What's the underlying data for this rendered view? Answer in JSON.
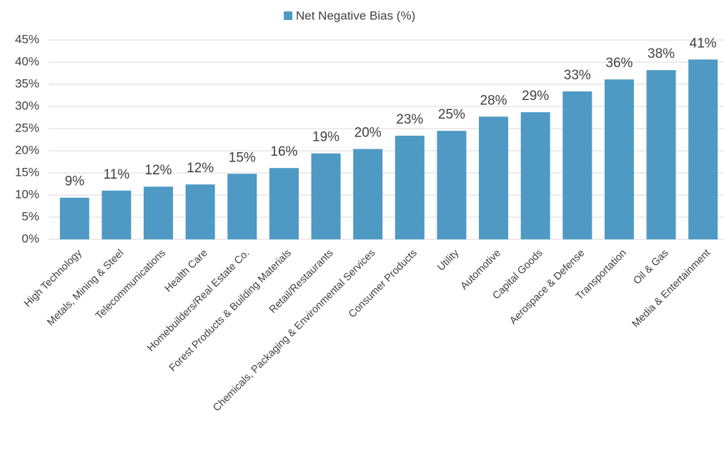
{
  "chart_data": {
    "type": "bar",
    "categories": [
      "High Technology",
      "Metals, Mining & Steel",
      "Telecommunications",
      "Health Care",
      "Homebuilders/Real Estate Co.",
      "Forest Products & Building Materials",
      "Retail/Restaurants",
      "Chemicals, Packaging & Environmental Services",
      "Consumer Products",
      "Utility",
      "Automotive",
      "Capital Goods",
      "Aerospace & Defense",
      "Transportation",
      "Oil & Gas",
      "Media & Entertainment"
    ],
    "series": [
      {
        "name": "Net Negative Bias (%)",
        "color": "#4e9ac4",
        "values": [
          9.4,
          11.0,
          11.9,
          12.4,
          14.8,
          16.1,
          19.4,
          20.4,
          23.4,
          24.5,
          27.7,
          28.7,
          33.4,
          36.1,
          38.2,
          40.6
        ],
        "value_labels": [
          "9%",
          "11%",
          "12%",
          "12%",
          "15%",
          "16%",
          "19%",
          "20%",
          "23%",
          "25%",
          "28%",
          "29%",
          "33%",
          "36%",
          "38%",
          "41%"
        ]
      }
    ],
    "ylim": [
      0,
      45
    ],
    "yticks": [
      {
        "value": 0,
        "label": "0%"
      },
      {
        "value": 5,
        "label": "5%"
      },
      {
        "value": 10,
        "label": "10%"
      },
      {
        "value": 15,
        "label": "15%"
      },
      {
        "value": 20,
        "label": "20%"
      },
      {
        "value": 25,
        "label": "25%"
      },
      {
        "value": 30,
        "label": "30%"
      },
      {
        "value": 35,
        "label": "35%"
      },
      {
        "value": 40,
        "label": "40%"
      },
      {
        "value": 45,
        "label": "45%"
      }
    ],
    "grid": true,
    "legend": "top"
  }
}
